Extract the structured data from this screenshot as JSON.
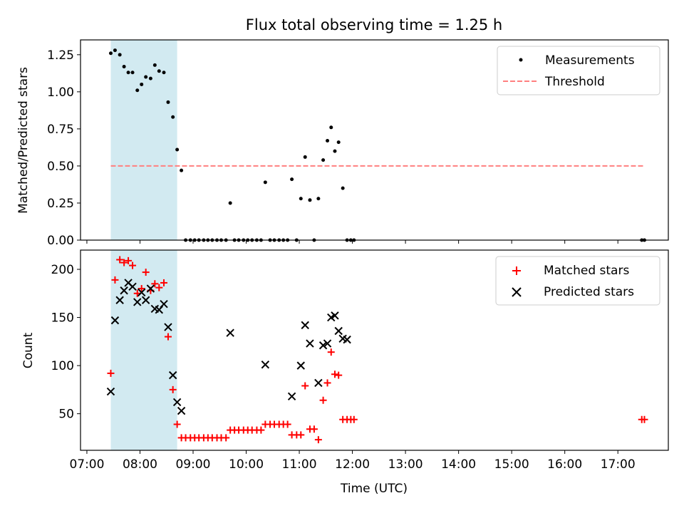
{
  "figure": {
    "title": "Flux total observing time = 1.25 h",
    "xlabel": "Time (UTC)",
    "x_range_hours": [
      6.88,
      17.95
    ],
    "x_tick_hours": [
      7,
      8,
      9,
      10,
      11,
      12,
      13,
      14,
      15,
      16,
      17
    ],
    "x_tick_labels": [
      "07:00",
      "08:00",
      "09:00",
      "10:00",
      "11:00",
      "12:00",
      "13:00",
      "14:00",
      "15:00",
      "16:00",
      "17:00"
    ],
    "shaded_span_hours": [
      7.45,
      8.7
    ],
    "shade_color": "#add8e6",
    "red": "#ff0000",
    "threshold_color": "#ff7f7f"
  },
  "chart_data": [
    {
      "type": "scatter",
      "title": "Flux total observing time = 1.25 h",
      "ylabel": "Matched/Predicted stars",
      "ylim": [
        0,
        1.35
      ],
      "y_ticks": [
        0.0,
        0.25,
        0.5,
        0.75,
        1.0,
        1.25
      ],
      "y_tick_labels": [
        "0.00",
        "0.25",
        "0.50",
        "0.75",
        "1.00",
        "1.25"
      ],
      "legend_position": "top-right",
      "legend": [
        "Measurements",
        "Threshold"
      ],
      "threshold": {
        "name": "Threshold",
        "y": 0.5,
        "x_start": 7.45,
        "x_end": 17.5
      },
      "series": [
        {
          "name": "Measurements",
          "x": [
            7.45,
            7.53,
            7.62,
            7.7,
            7.78,
            7.86,
            7.95,
            8.03,
            8.11,
            8.2,
            8.28,
            8.36,
            8.45,
            8.53,
            8.62,
            8.7,
            8.78,
            8.86,
            8.95,
            9.03,
            9.11,
            9.2,
            9.28,
            9.36,
            9.45,
            9.53,
            9.62,
            9.7,
            9.78,
            9.86,
            9.95,
            10.03,
            10.11,
            10.2,
            10.28,
            10.36,
            10.45,
            10.53,
            10.62,
            10.7,
            10.78,
            10.86,
            10.95,
            11.03,
            11.11,
            11.2,
            11.28,
            11.36,
            11.45,
            11.53,
            11.6,
            11.67,
            11.74,
            11.82,
            11.9,
            11.97,
            12.03,
            17.45,
            17.5
          ],
          "y": [
            1.26,
            1.28,
            1.25,
            1.17,
            1.13,
            1.13,
            1.01,
            1.05,
            1.1,
            1.09,
            1.18,
            1.14,
            1.13,
            0.93,
            0.83,
            0.61,
            0.47,
            0,
            0,
            0,
            0,
            0,
            0,
            0,
            0,
            0,
            0,
            0.25,
            0,
            0,
            0,
            0,
            0,
            0,
            0,
            0.39,
            0,
            0,
            0,
            0,
            0,
            0.41,
            0,
            0.28,
            0.56,
            0.27,
            0,
            0.28,
            0.54,
            0.67,
            0.76,
            0.6,
            0.66,
            0.35,
            0,
            0,
            0,
            0,
            0
          ]
        }
      ]
    },
    {
      "type": "scatter",
      "ylabel": "Count",
      "ylim": [
        12,
        220
      ],
      "y_ticks": [
        50,
        100,
        150,
        200
      ],
      "y_tick_labels": [
        "50",
        "100",
        "150",
        "200"
      ],
      "legend_position": "top-right",
      "legend": [
        "Matched stars",
        "Predicted stars"
      ],
      "series": [
        {
          "name": "Matched stars",
          "marker": "+",
          "x": [
            7.45,
            7.53,
            7.62,
            7.7,
            7.78,
            7.86,
            7.95,
            8.03,
            8.11,
            8.2,
            8.28,
            8.36,
            8.45,
            8.53,
            8.62,
            8.7,
            8.78,
            8.86,
            8.95,
            9.03,
            9.11,
            9.2,
            9.28,
            9.36,
            9.45,
            9.53,
            9.62,
            9.7,
            9.78,
            9.86,
            9.95,
            10.03,
            10.11,
            10.2,
            10.28,
            10.36,
            10.45,
            10.53,
            10.62,
            10.7,
            10.78,
            10.86,
            10.95,
            11.03,
            11.11,
            11.2,
            11.28,
            11.36,
            11.45,
            11.53,
            11.6,
            11.67,
            11.74,
            11.82,
            11.9,
            11.97,
            12.03,
            17.45,
            17.5
          ],
          "y": [
            92,
            189,
            210,
            207,
            209,
            204,
            175,
            180,
            197,
            178,
            185,
            181,
            186,
            130,
            75,
            39,
            25,
            25,
            25,
            25,
            25,
            25,
            25,
            25,
            25,
            25,
            25,
            33,
            33,
            33,
            33,
            33,
            33,
            33,
            33,
            39,
            39,
            39,
            39,
            39,
            39,
            28,
            28,
            28,
            79,
            34,
            34,
            23,
            64,
            82,
            114,
            91,
            90,
            44,
            44,
            44,
            44,
            44,
            44
          ]
        },
        {
          "name": "Predicted stars",
          "marker": "x",
          "x": [
            7.45,
            7.53,
            7.62,
            7.7,
            7.78,
            7.86,
            7.95,
            8.03,
            8.11,
            8.2,
            8.28,
            8.36,
            8.45,
            8.53,
            8.62,
            8.7,
            8.78,
            9.7,
            10.36,
            10.86,
            11.03,
            11.11,
            11.2,
            11.36,
            11.45,
            11.53,
            11.6,
            11.67,
            11.74,
            11.82,
            11.9
          ],
          "y": [
            73,
            147,
            168,
            178,
            186,
            182,
            166,
            176,
            168,
            180,
            159,
            158,
            164,
            140,
            90,
            62,
            53,
            134,
            101,
            68,
            100,
            142,
            123,
            82,
            121,
            123,
            150,
            152,
            136,
            128,
            127
          ]
        }
      ]
    }
  ]
}
